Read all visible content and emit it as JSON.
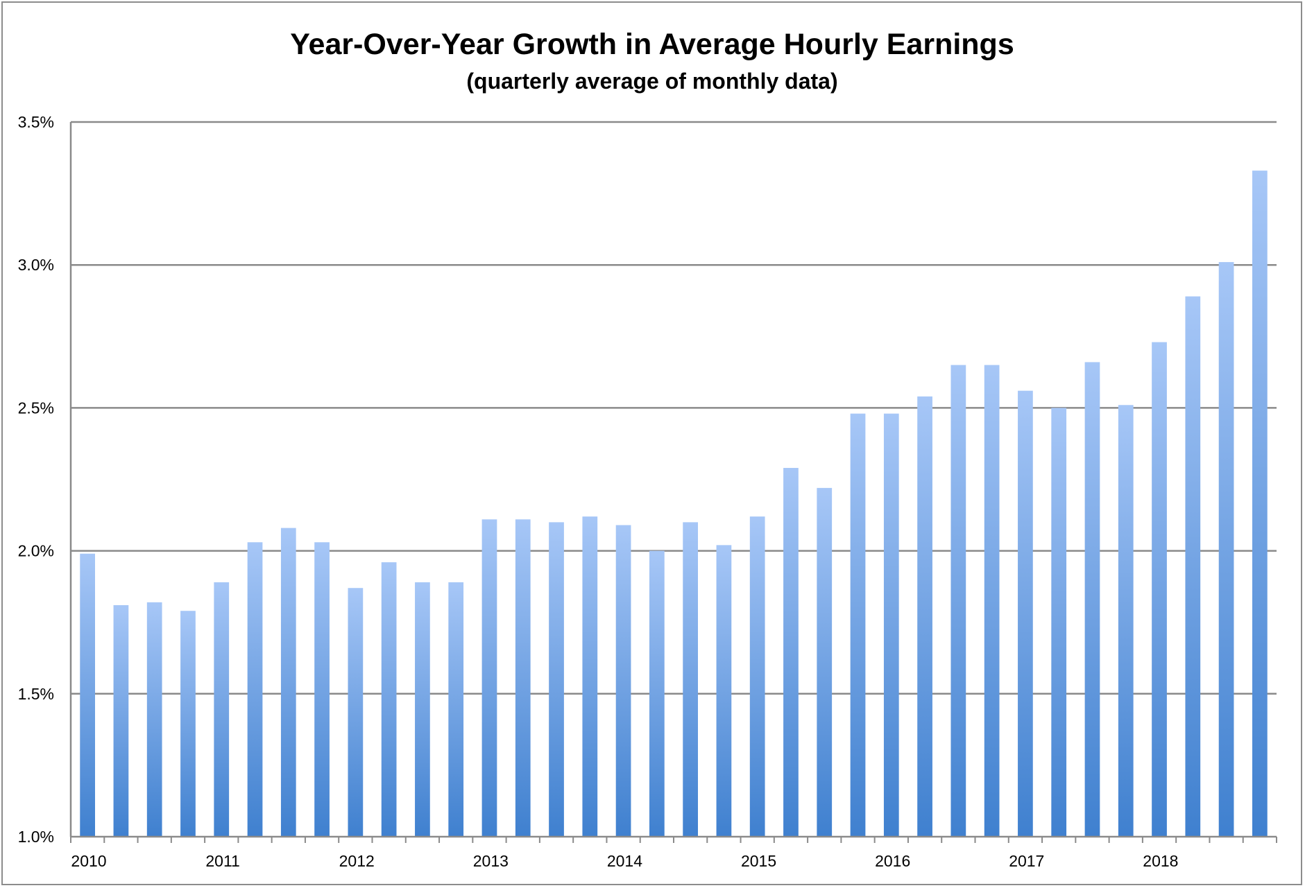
{
  "chart_data": {
    "type": "bar",
    "title": "Year-Over-Year Growth in Average Hourly Earnings",
    "subtitle": "(quarterly average of monthly data)",
    "xlabel": "",
    "ylabel": "",
    "ylim": [
      1.0,
      3.5
    ],
    "y_ticks": [
      1.0,
      1.5,
      2.0,
      2.5,
      3.0,
      3.5
    ],
    "y_tick_labels": [
      "1.0%",
      "1.5%",
      "2.0%",
      "2.5%",
      "3.0%",
      "3.5%"
    ],
    "grid": true,
    "legend": "none",
    "bar_gradient": {
      "top": "#a7c7f7",
      "bottom": "#3f80cf"
    },
    "colors": {
      "grid": "#8a8a8a",
      "axis": "#8a8a8a",
      "text": "#000000"
    },
    "year_labels": [
      "2010",
      "2011",
      "2012",
      "2013",
      "2014",
      "2015",
      "2016",
      "2017",
      "2018"
    ],
    "categories": [
      "2010 Q1",
      "2010 Q2",
      "2010 Q3",
      "2010 Q4",
      "2011 Q1",
      "2011 Q2",
      "2011 Q3",
      "2011 Q4",
      "2012 Q1",
      "2012 Q2",
      "2012 Q3",
      "2012 Q4",
      "2013 Q1",
      "2013 Q2",
      "2013 Q3",
      "2013 Q4",
      "2014 Q1",
      "2014 Q2",
      "2014 Q3",
      "2014 Q4",
      "2015 Q1",
      "2015 Q2",
      "2015 Q3",
      "2015 Q4",
      "2016 Q1",
      "2016 Q2",
      "2016 Q3",
      "2016 Q4",
      "2017 Q1",
      "2017 Q2",
      "2017 Q3",
      "2017 Q4",
      "2018 Q1",
      "2018 Q2",
      "2018 Q3",
      "2018 Q4"
    ],
    "values": [
      1.99,
      1.81,
      1.82,
      1.79,
      1.89,
      2.03,
      2.08,
      2.03,
      1.87,
      1.96,
      1.89,
      1.89,
      2.11,
      2.11,
      2.1,
      2.12,
      2.09,
      2.0,
      2.1,
      2.02,
      2.12,
      2.29,
      2.22,
      2.48,
      2.48,
      2.54,
      2.65,
      2.65,
      2.56,
      2.5,
      2.66,
      2.51,
      2.73,
      2.89,
      3.01,
      3.33
    ]
  }
}
